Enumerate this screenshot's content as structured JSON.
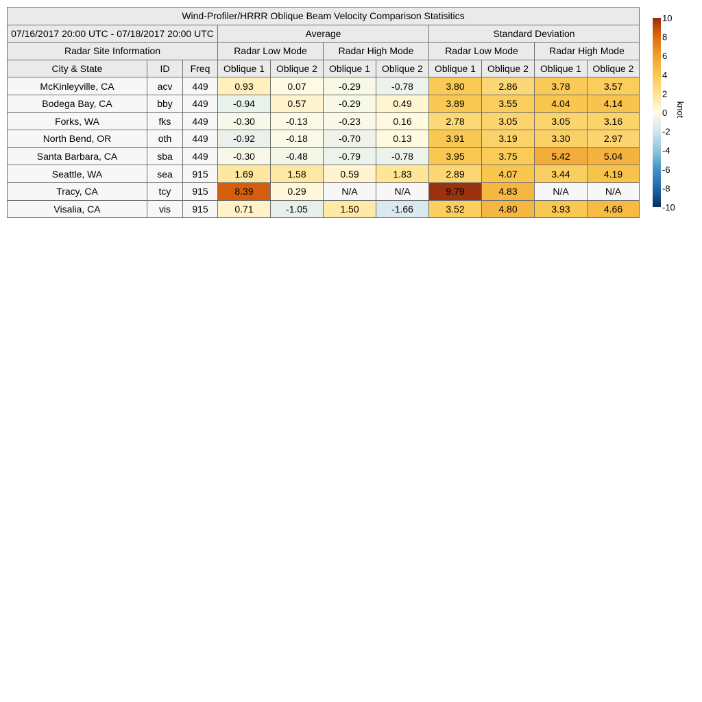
{
  "chart_data": {
    "type": "table",
    "title": "Wind-Profiler/HRRR Oblique Beam Velocity Comparison Statisitics",
    "period": "07/16/2017 20:00 UTC - 07/18/2017 20:00 UTC",
    "group_headers": {
      "average": "Average",
      "std_dev": "Standard Deviation",
      "site_info": "Radar Site Information",
      "low_mode": "Radar Low Mode",
      "high_mode": "Radar High Mode"
    },
    "column_headers": [
      "City & State",
      "ID",
      "Freq",
      "Oblique 1",
      "Oblique 2",
      "Oblique 1",
      "Oblique 2",
      "Oblique 1",
      "Oblique 2",
      "Oblique 1",
      "Oblique 2"
    ],
    "rows": [
      {
        "city": "McKinleyville, CA",
        "id": "acv",
        "freq": "449",
        "values": [
          "0.93",
          "0.07",
          "-0.29",
          "-0.78",
          "3.80",
          "2.86",
          "3.78",
          "3.57"
        ]
      },
      {
        "city": "Bodega Bay, CA",
        "id": "bby",
        "freq": "449",
        "values": [
          "-0.94",
          "0.57",
          "-0.29",
          "0.49",
          "3.89",
          "3.55",
          "4.04",
          "4.14"
        ]
      },
      {
        "city": "Forks, WA",
        "id": "fks",
        "freq": "449",
        "values": [
          "-0.30",
          "-0.13",
          "-0.23",
          "0.16",
          "2.78",
          "3.05",
          "3.05",
          "3.16"
        ]
      },
      {
        "city": "North Bend, OR",
        "id": "oth",
        "freq": "449",
        "values": [
          "-0.92",
          "-0.18",
          "-0.70",
          "0.13",
          "3.91",
          "3.19",
          "3.30",
          "2.97"
        ]
      },
      {
        "city": "Santa Barbara, CA",
        "id": "sba",
        "freq": "449",
        "values": [
          "-0.30",
          "-0.48",
          "-0.79",
          "-0.78",
          "3.95",
          "3.75",
          "5.42",
          "5.04"
        ]
      },
      {
        "city": "Seattle, WA",
        "id": "sea",
        "freq": "915",
        "values": [
          "1.69",
          "1.58",
          "0.59",
          "1.83",
          "2.89",
          "4.07",
          "3.44",
          "4.19"
        ]
      },
      {
        "city": "Tracy, CA",
        "id": "tcy",
        "freq": "915",
        "values": [
          "8.39",
          "0.29",
          "N/A",
          "N/A",
          "9.79",
          "4.83",
          "N/A",
          "N/A"
        ]
      },
      {
        "city": "Visalia, CA",
        "id": "vis",
        "freq": "915",
        "values": [
          "0.71",
          "-1.05",
          "1.50",
          "-1.66",
          "3.52",
          "4.80",
          "3.93",
          "4.66"
        ]
      }
    ],
    "colorbar": {
      "label": "knot",
      "range": [
        -10,
        10
      ],
      "ticks": [
        "10",
        "8",
        "6",
        "4",
        "2",
        "0",
        "-2",
        "-4",
        "-6",
        "-8",
        "-10"
      ]
    },
    "colors": {
      "na": "#f7f7f7",
      "header": "#eaeaea",
      "scale": [
        "#053061",
        "#2166ac",
        "#4393c3",
        "#92c5de",
        "#d1e5f0",
        "#fffbe6",
        "#fee391",
        "#f9c74f",
        "#f0a030",
        "#e06a10",
        "#b03a0a",
        "#8a2a12"
      ]
    }
  }
}
